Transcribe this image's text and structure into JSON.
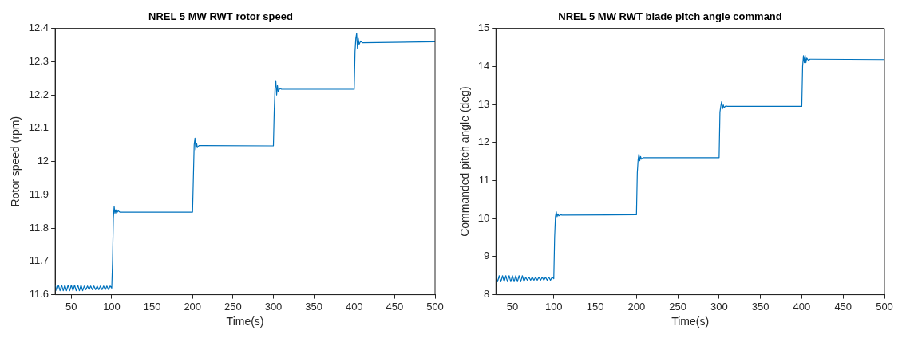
{
  "chart_data": [
    {
      "type": "line",
      "title": "NREL 5 MW RWT rotor speed",
      "xlabel": "Time(s)",
      "ylabel": "Rotor speed (rpm)",
      "color": "#0072bd",
      "grid": false,
      "legend": false,
      "marker": "none",
      "x": [
        30,
        32,
        34,
        36,
        38,
        40,
        42,
        44,
        46,
        48,
        50,
        52,
        54,
        56,
        58,
        60,
        62,
        64,
        66,
        68,
        70,
        72,
        74,
        76,
        78,
        80,
        82,
        84,
        86,
        88,
        90,
        92,
        94,
        96,
        98,
        100,
        101,
        102,
        103,
        104,
        105,
        106,
        108,
        110,
        200,
        201,
        202,
        203,
        204,
        205,
        206,
        208,
        300,
        301,
        302,
        303,
        304,
        305,
        306,
        308,
        310,
        400,
        401,
        402,
        403,
        404,
        405,
        406,
        408,
        410,
        500
      ],
      "values": [
        11.629,
        11.612,
        11.629,
        11.612,
        11.629,
        11.612,
        11.629,
        11.612,
        11.629,
        11.612,
        11.629,
        11.612,
        11.629,
        11.612,
        11.629,
        11.612,
        11.629,
        11.612,
        11.626,
        11.615,
        11.626,
        11.615,
        11.626,
        11.615,
        11.626,
        11.615,
        11.626,
        11.615,
        11.626,
        11.615,
        11.626,
        11.615,
        11.626,
        11.615,
        11.626,
        11.62,
        11.7,
        11.83,
        11.865,
        11.845,
        11.855,
        11.845,
        11.852,
        11.848,
        11.848,
        11.95,
        12.05,
        12.07,
        12.035,
        12.055,
        12.042,
        12.048,
        12.047,
        12.15,
        12.22,
        12.243,
        12.2,
        12.228,
        12.21,
        12.22,
        12.217,
        12.217,
        12.33,
        12.37,
        12.385,
        12.34,
        12.37,
        12.352,
        12.362,
        12.357,
        12.36
      ],
      "xlim": [
        30,
        500
      ],
      "xticks": [
        50,
        100,
        150,
        200,
        250,
        300,
        350,
        400,
        450,
        500
      ],
      "ylim": [
        11.6,
        12.4
      ],
      "yticks": [
        11.6,
        11.7,
        11.8,
        11.9,
        12,
        12.1,
        12.2,
        12.3,
        12.4
      ]
    },
    {
      "type": "line",
      "title": "NREL 5 MW RWT blade pitch angle command",
      "xlabel": "Time(s)",
      "ylabel": "Commanded pitch angle (deg)",
      "color": "#0072bd",
      "grid": false,
      "legend": false,
      "marker": "none",
      "x": [
        30,
        32,
        34,
        36,
        38,
        40,
        42,
        44,
        46,
        48,
        50,
        52,
        54,
        56,
        58,
        60,
        62,
        64,
        66,
        68,
        70,
        72,
        74,
        76,
        78,
        80,
        82,
        84,
        86,
        88,
        90,
        92,
        94,
        96,
        98,
        100,
        101,
        102,
        103,
        104,
        105,
        106,
        108,
        110,
        200,
        201,
        202,
        203,
        204,
        205,
        206,
        208,
        300,
        301,
        302,
        303,
        304,
        305,
        306,
        308,
        310,
        400,
        401,
        402,
        403,
        404,
        405,
        406,
        408,
        410,
        500
      ],
      "values": [
        8.5,
        8.34,
        8.5,
        8.34,
        8.5,
        8.34,
        8.5,
        8.34,
        8.5,
        8.34,
        8.5,
        8.34,
        8.5,
        8.34,
        8.5,
        8.34,
        8.5,
        8.34,
        8.46,
        8.38,
        8.46,
        8.38,
        8.46,
        8.38,
        8.46,
        8.38,
        8.46,
        8.38,
        8.46,
        8.38,
        8.46,
        8.38,
        8.46,
        8.38,
        8.46,
        8.42,
        9.5,
        10.05,
        10.18,
        10.05,
        10.12,
        10.07,
        10.1,
        10.09,
        10.1,
        11.2,
        11.55,
        11.7,
        11.52,
        11.63,
        11.56,
        11.6,
        11.6,
        12.8,
        12.95,
        13.07,
        12.88,
        12.99,
        12.92,
        12.96,
        12.95,
        12.95,
        14.0,
        14.28,
        14.1,
        14.3,
        14.1,
        14.22,
        14.16,
        14.19,
        14.18
      ],
      "xlim": [
        30,
        500
      ],
      "xticks": [
        50,
        100,
        150,
        200,
        250,
        300,
        350,
        400,
        450,
        500
      ],
      "ylim": [
        8,
        15
      ],
      "yticks": [
        8,
        9,
        10,
        11,
        12,
        13,
        14,
        15
      ]
    }
  ]
}
